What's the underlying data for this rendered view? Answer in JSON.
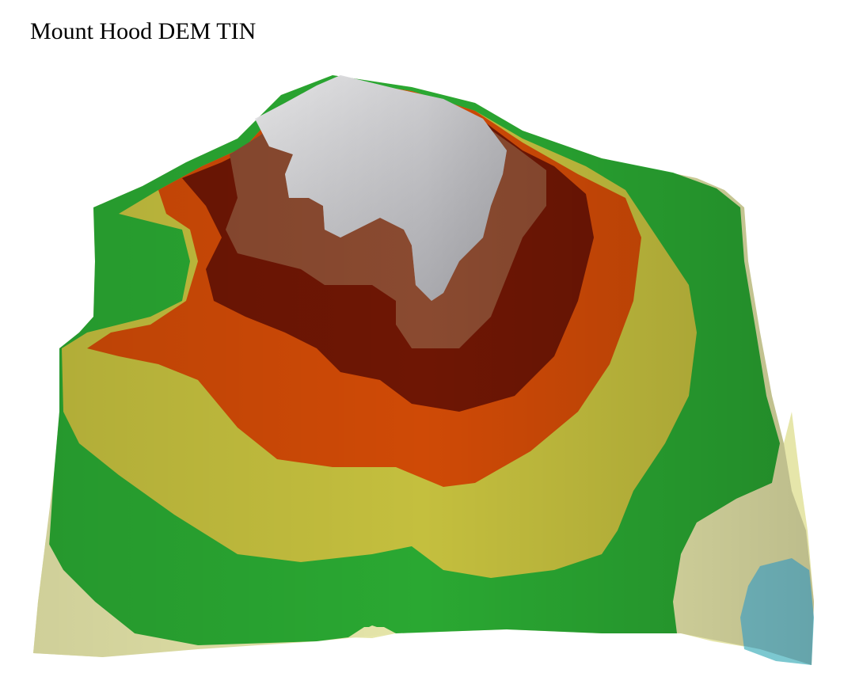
{
  "title": "Mount Hood DEM TIN",
  "palette": {
    "pale": "#e6e6aa",
    "green": "#2aa832",
    "olive": "#c4bf3e",
    "orange": "#cf4a06",
    "dark_red": "#6e1604",
    "brown": "#8a4a30",
    "snow": "#c8c8cc",
    "water": "#7cc8d0"
  }
}
